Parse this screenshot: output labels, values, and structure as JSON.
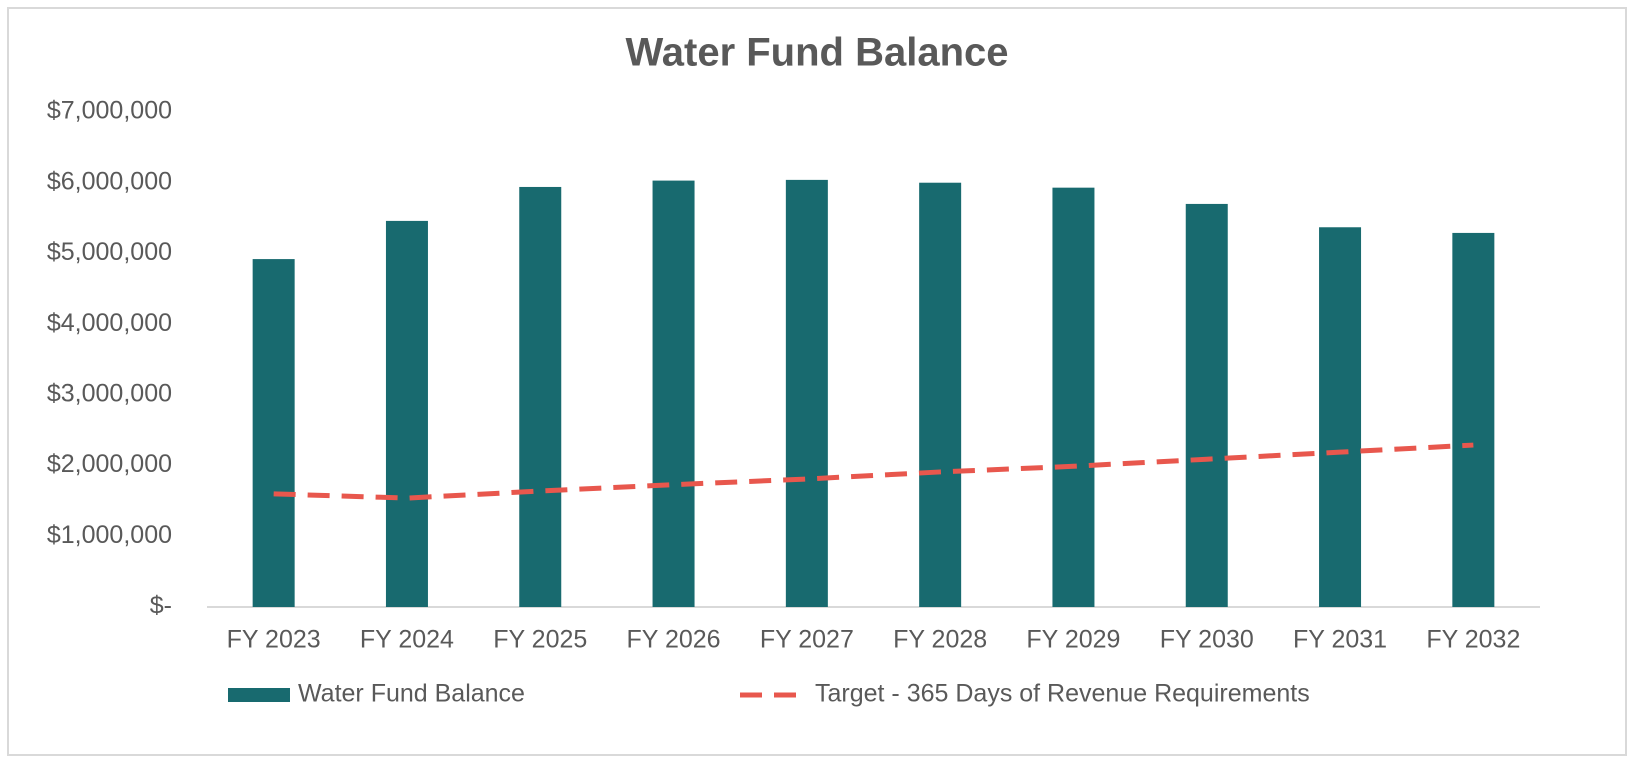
{
  "chart_data": {
    "type": "bar",
    "title": "Water Fund Balance",
    "categories": [
      "FY 2023",
      "FY 2024",
      "FY 2025",
      "FY 2026",
      "FY 2027",
      "FY 2028",
      "FY 2029",
      "FY 2030",
      "FY 2031",
      "FY 2032"
    ],
    "series": [
      {
        "name": "Water Fund Balance",
        "type": "bar",
        "color": "#186a6f",
        "values": [
          4920000,
          5460000,
          5940000,
          6030000,
          6040000,
          6000000,
          5930000,
          5700000,
          5370000,
          5290000
        ]
      },
      {
        "name": "Target - 365 Days of Revenue Requirements",
        "type": "line",
        "color": "#e8574d",
        "dashed": true,
        "values": [
          1600000,
          1540000,
          1640000,
          1730000,
          1810000,
          1910000,
          1990000,
          2090000,
          2190000,
          2290000
        ]
      }
    ],
    "ylim": [
      0,
      7000000
    ],
    "yticks": [
      {
        "value": 0,
        "label": "$-"
      },
      {
        "value": 1000000,
        "label": "$1,000,000"
      },
      {
        "value": 2000000,
        "label": "$2,000,000"
      },
      {
        "value": 3000000,
        "label": "$3,000,000"
      },
      {
        "value": 4000000,
        "label": "$4,000,000"
      },
      {
        "value": 5000000,
        "label": "$5,000,000"
      },
      {
        "value": 6000000,
        "label": "$6,000,000"
      },
      {
        "value": 7000000,
        "label": "$7,000,000"
      }
    ],
    "grid": false,
    "legend": "bottom"
  }
}
